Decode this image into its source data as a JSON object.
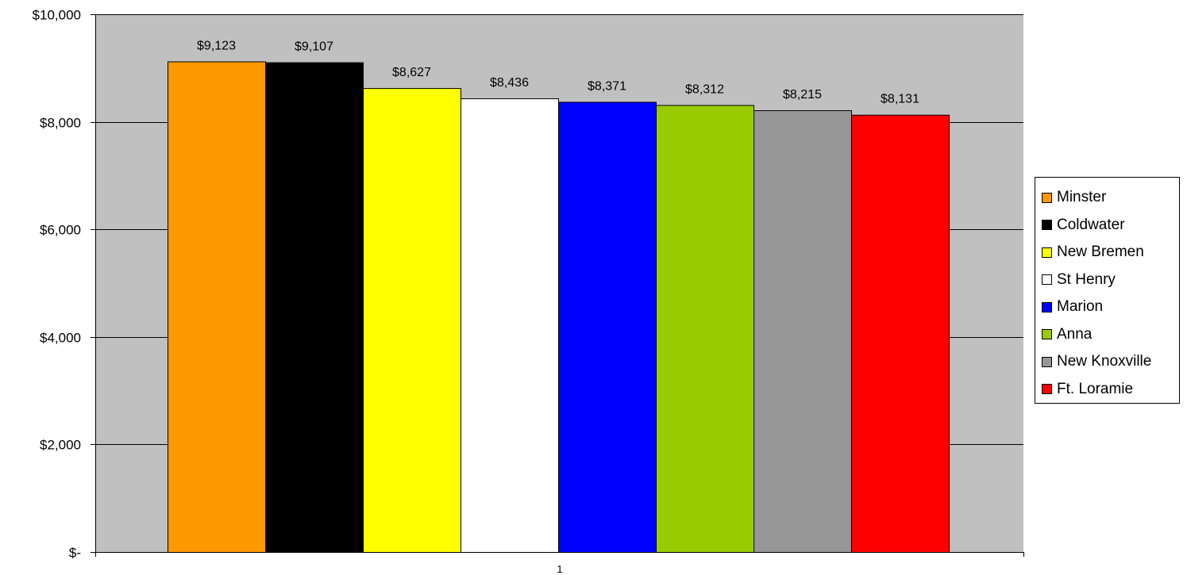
{
  "chart_data": {
    "type": "bar",
    "categories": [
      "1"
    ],
    "series": [
      {
        "name": "Minster",
        "values": [
          9123
        ],
        "color": "#FF9900",
        "value_label": "$9,123"
      },
      {
        "name": "Coldwater",
        "values": [
          9107
        ],
        "color": "#000000",
        "value_label": "$9,107"
      },
      {
        "name": "New Bremen",
        "values": [
          8627
        ],
        "color": "#FFFF00",
        "value_label": "$8,627"
      },
      {
        "name": "St Henry",
        "values": [
          8436
        ],
        "color": "#FFFFFF",
        "value_label": "$8,436"
      },
      {
        "name": "Marion",
        "values": [
          8371
        ],
        "color": "#0000FF",
        "value_label": "$8,371"
      },
      {
        "name": "Anna",
        "values": [
          8312
        ],
        "color": "#99CC00",
        "value_label": "$8,312"
      },
      {
        "name": "New Knoxville",
        "values": [
          8215
        ],
        "color": "#969696",
        "value_label": "$8,215"
      },
      {
        "name": "Ft. Loramie",
        "values": [
          8131
        ],
        "color": "#FF0000",
        "value_label": "$8,131"
      }
    ],
    "yticks": [
      0,
      2000,
      4000,
      6000,
      8000,
      10000
    ],
    "ytick_labels": [
      "$-",
      "$2,000",
      "$4,000",
      "$6,000",
      "$8,000",
      "$10,000"
    ],
    "ylim": [
      0,
      10000
    ],
    "grid": true,
    "legend_position": "right",
    "plot_background": "#C0C0C0",
    "title": "",
    "xlabel": "",
    "ylabel": ""
  }
}
